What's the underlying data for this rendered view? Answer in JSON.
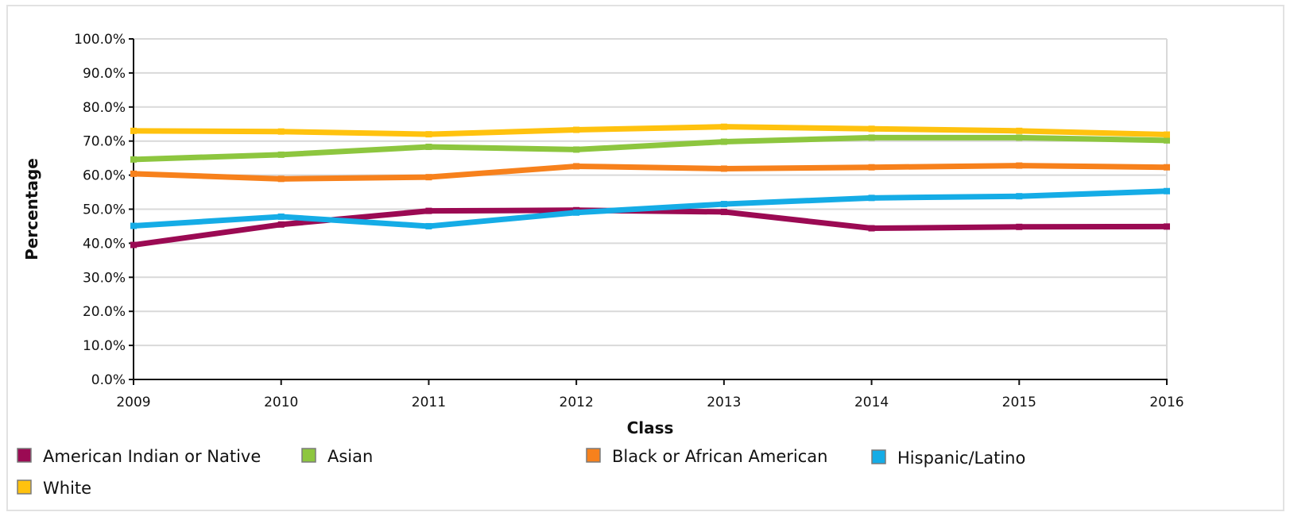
{
  "chart_data": {
    "type": "line",
    "xlabel": "Class",
    "ylabel": "Percentage",
    "x": [
      "2009",
      "2010",
      "2011",
      "2012",
      "2013",
      "2014",
      "2015",
      "2016"
    ],
    "y_ticks": [
      "0.0%",
      "10.0%",
      "20.0%",
      "30.0%",
      "40.0%",
      "50.0%",
      "60.0%",
      "70.0%",
      "80.0%",
      "90.0%",
      "100.0%"
    ],
    "ylim": [
      0,
      100
    ],
    "grid": true,
    "legend_position": "bottom",
    "series": [
      {
        "name": "American Indian or Native",
        "color": "#9b0a53",
        "values": [
          39.5,
          45.5,
          49.5,
          49.7,
          49.2,
          44.4,
          44.8,
          44.9
        ]
      },
      {
        "name": "Asian",
        "color": "#8dc63f",
        "values": [
          64.6,
          66.0,
          68.3,
          67.5,
          69.8,
          71.0,
          71.0,
          70.2
        ]
      },
      {
        "name": "Black or African American",
        "color": "#f7811c",
        "values": [
          60.4,
          58.9,
          59.4,
          62.6,
          61.9,
          62.3,
          62.8,
          62.3
        ]
      },
      {
        "name": "Hispanic/Latino",
        "color": "#15ace6",
        "values": [
          45.1,
          47.8,
          45.0,
          49.0,
          51.5,
          53.3,
          53.8,
          55.3
        ]
      },
      {
        "name": "White",
        "color": "#ffc20e",
        "values": [
          73.0,
          72.8,
          72.0,
          73.3,
          74.2,
          73.6,
          73.0,
          71.9
        ]
      }
    ]
  }
}
